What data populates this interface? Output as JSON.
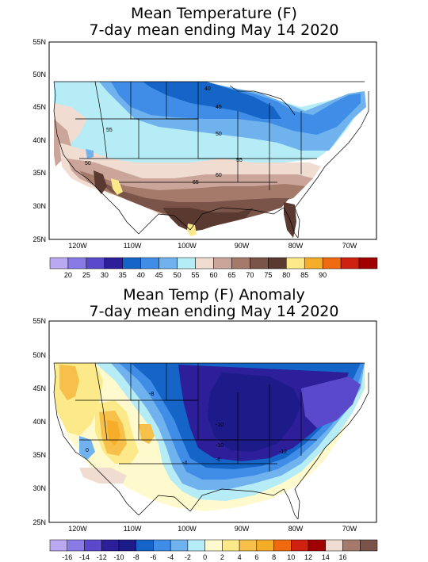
{
  "top": {
    "title_line1": "Mean Temperature (F)",
    "title_line2": "7-day mean ending May 14 2020",
    "lat_labels": [
      "55N",
      "50N",
      "45N",
      "40N",
      "35N",
      "30N",
      "25N"
    ],
    "lon_labels": [
      "120W",
      "110W",
      "100W",
      "90W",
      "80W",
      "70W"
    ],
    "contour_labels": [
      "40",
      "45",
      "50",
      "55",
      "60",
      "65",
      "55",
      "50"
    ],
    "legend": {
      "colors": [
        "#b9a9f0",
        "#8a7ae6",
        "#5a4acb",
        "#2d1e9a",
        "#1565c8",
        "#3f8de6",
        "#6fb2ee",
        "#b6ecf6",
        "#f0dcd0",
        "#cba59a",
        "#a47a6b",
        "#7a5449",
        "#5a3a30",
        "#fbe98a",
        "#f6ad2a",
        "#ef6a10",
        "#d02010",
        "#a00000"
      ],
      "labels": [
        "20",
        "25",
        "30",
        "35",
        "40",
        "45",
        "50",
        "55",
        "60",
        "65",
        "70",
        "75",
        "80",
        "85",
        "90"
      ]
    }
  },
  "bottom": {
    "title_line1": "Mean Temp (F) Anomaly",
    "title_line2": "7-day mean ending May 14 2020",
    "lat_labels": [
      "55N",
      "50N",
      "45N",
      "40N",
      "35N",
      "30N",
      "25N"
    ],
    "lon_labels": [
      "120W",
      "110W",
      "100W",
      "90W",
      "80W",
      "70W"
    ],
    "contour_labels": [
      "-8",
      "-10",
      "-10",
      "-6",
      "-4",
      "-12",
      "0"
    ],
    "legend": {
      "colors": [
        "#b9a9f0",
        "#8a7ae6",
        "#5a4acb",
        "#2d1e9a",
        "#1d1a8a",
        "#1565c8",
        "#3f8de6",
        "#6fb2ee",
        "#b6ecf6",
        "#fffacd",
        "#fbe98a",
        "#f6c04a",
        "#f6ad2a",
        "#ef6a10",
        "#d02010",
        "#a00000",
        "#f0dcd0",
        "#a47a6b",
        "#7a5449"
      ],
      "labels": [
        "-16",
        "-14",
        "-12",
        "-10",
        "-8",
        "-6",
        "-4",
        "-2",
        "0",
        "2",
        "4",
        "6",
        "8",
        "10",
        "12",
        "14",
        "16"
      ]
    }
  }
}
